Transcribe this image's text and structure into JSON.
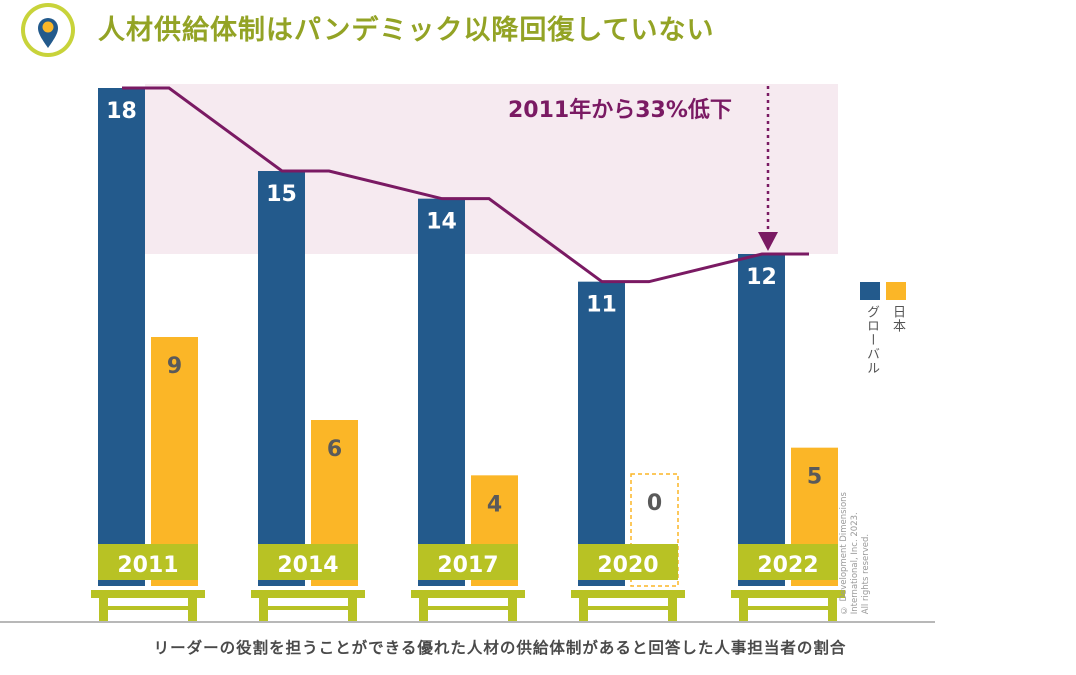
{
  "title": "人材供給体制はパンデミック以降回復していない",
  "annotation": "2011年から33%低下",
  "caption": "リーダーの役割を担うことができる優れた人材の供給体制があると回答した人事担当者の割合",
  "copyright": [
    "© Development Dimensions",
    "International, Inc. 2023.",
    "All rights reserved."
  ],
  "colors": {
    "global": "#235a8c",
    "japan": "#fbb627",
    "accent_line": "#7a1a63",
    "band": "#f6eaf0",
    "bench": "#b8c224",
    "title": "#93a325"
  },
  "icons": {
    "title": "map-pin-icon"
  },
  "chart_data": {
    "type": "bar",
    "categories": [
      "2011",
      "2014",
      "2017",
      "2020",
      "2022"
    ],
    "series": [
      {
        "name": "グローバル",
        "values": [
          18,
          15,
          14,
          11,
          12
        ]
      },
      {
        "name": "日本",
        "values": [
          9,
          6,
          4,
          0,
          5
        ]
      }
    ],
    "ylim": [
      0,
      18
    ],
    "legend": [
      "グローバル",
      "日本"
    ],
    "legend_position": "right",
    "annotation": "2011年から33%低下",
    "title": "人材供給体制はパンデミック以降回復していない",
    "xlabel": "リーダーの役割を担うことができる優れた人材の供給体制があると回答した人事担当者の割合",
    "ylabel": ""
  }
}
